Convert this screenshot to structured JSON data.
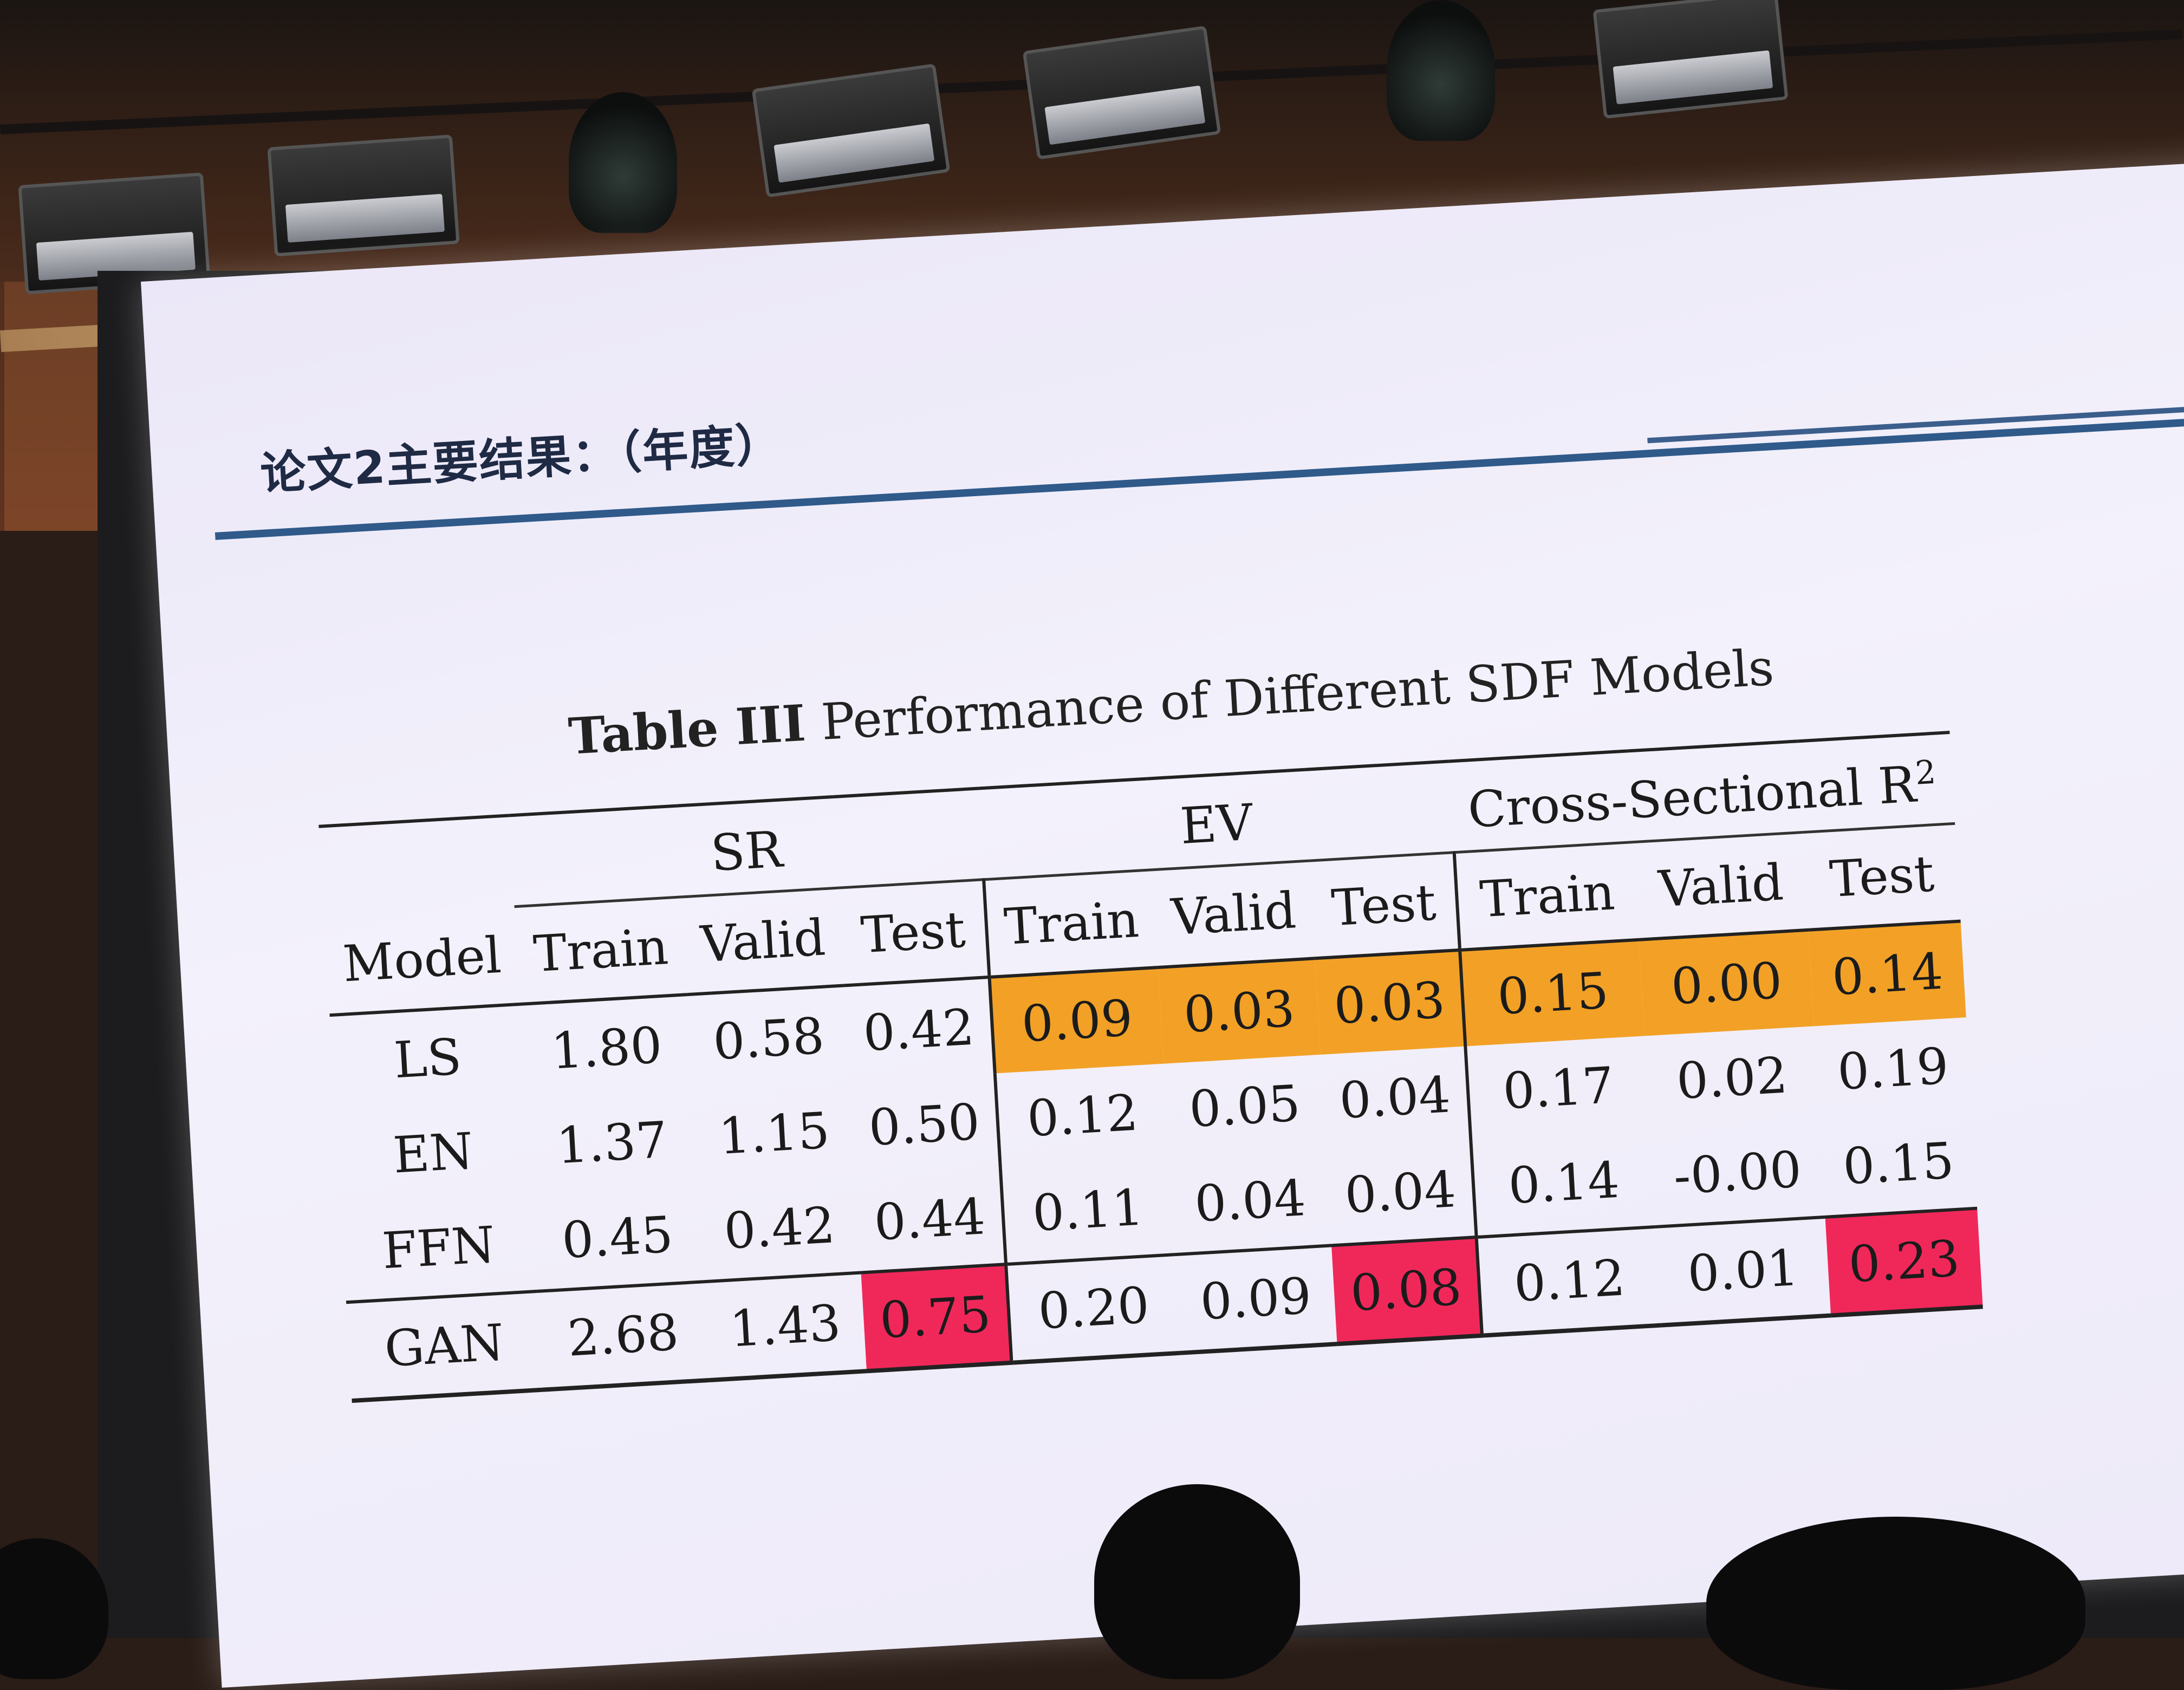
{
  "slide": {
    "title": "论文2主要结果：（年度）",
    "table_caption_prefix": "Table III",
    "table_caption_rest": " Performance of Different SDF Models"
  },
  "table": {
    "groups": [
      "SR",
      "EV",
      "Cross-Sectional R"
    ],
    "group_superscript": "2",
    "columns": [
      "Model",
      "Train",
      "Valid",
      "Test",
      "Train",
      "Valid",
      "Test",
      "Train",
      "Valid",
      "Test"
    ],
    "rows": [
      {
        "model": "LS",
        "values": [
          "1.80",
          "0.58",
          "0.42",
          "0.09",
          "0.03",
          "0.03",
          "0.15",
          "0.00",
          "0.14"
        ]
      },
      {
        "model": "EN",
        "values": [
          "1.37",
          "1.15",
          "0.50",
          "0.12",
          "0.05",
          "0.04",
          "0.17",
          "0.02",
          "0.19"
        ]
      },
      {
        "model": "FFN",
        "values": [
          "0.45",
          "0.42",
          "0.44",
          "0.11",
          "0.04",
          "0.04",
          "0.14",
          "-0.00",
          "0.15"
        ]
      },
      {
        "model": "GAN",
        "values": [
          "2.68",
          "1.43",
          "0.75",
          "0.20",
          "0.09",
          "0.08",
          "0.12",
          "0.01",
          "0.23"
        ]
      }
    ]
  },
  "colors": {
    "highlight_orange": "#f2a126",
    "highlight_red": "#f0285a",
    "slide_rule": "#2f5a8a"
  }
}
